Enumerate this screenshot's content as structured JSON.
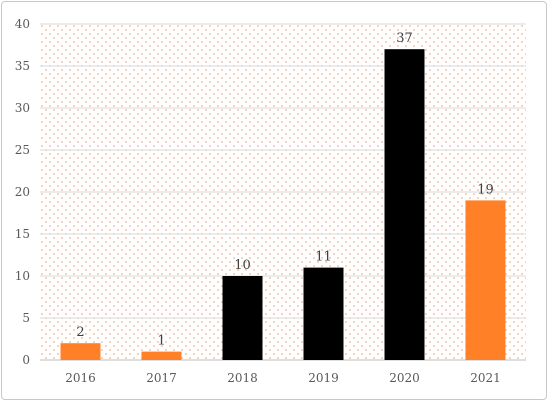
{
  "chart_data": {
    "type": "bar",
    "title": "",
    "xlabel": "",
    "ylabel": "",
    "categories": [
      "2016",
      "2017",
      "2018",
      "2019",
      "2020",
      "2021"
    ],
    "values": [
      2,
      1,
      10,
      11,
      37,
      19
    ],
    "data_labels": [
      "2",
      "1",
      "10",
      "11",
      "37",
      "19"
    ],
    "bar_colors": [
      "#FF8026",
      "#FF8026",
      "#000000",
      "#000000",
      "#000000",
      "#FF8026"
    ],
    "ylim": [
      0,
      40
    ],
    "yticks": [
      0,
      5,
      10,
      15,
      20,
      25,
      30,
      35,
      40
    ],
    "ytick_labels": [
      "0",
      "5",
      "10",
      "15",
      "20",
      "25",
      "30",
      "35",
      "40"
    ],
    "grid": true,
    "legend": "none",
    "plot_background": "dotted-orange",
    "colors": {
      "orange": "#FF8026",
      "black": "#000000",
      "grid": "#d9d9d9",
      "dots": "#f3b38a"
    }
  }
}
